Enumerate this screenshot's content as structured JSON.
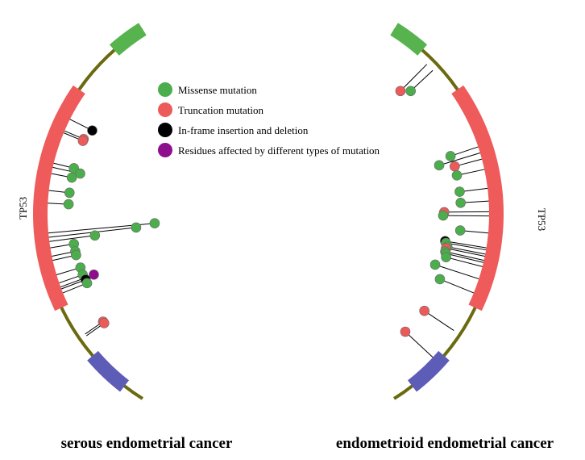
{
  "colors": {
    "backbone": "#6b6a10",
    "tp53_domain": "#ef5a5a",
    "domain_top": "#57b34d",
    "domain_bottom": "#5d5db8",
    "missense": "#4cad4c",
    "truncation": "#ec5a5a",
    "inframe": "#000000",
    "multi": "#8e0f8e"
  },
  "legend": [
    {
      "key": "missense",
      "label": "Missense mutation"
    },
    {
      "key": "truncation",
      "label": "Truncation mutation"
    },
    {
      "key": "inframe",
      "label": "In-frame insertion and deletion"
    },
    {
      "key": "multi",
      "label": "Residues affected by different types of mutation"
    }
  ],
  "chart_data": [
    {
      "type": "lollipop",
      "title": "serous endometrial cancer",
      "gene": "TP53",
      "mutations": [
        {
          "type": "inframe",
          "pos": 0.27,
          "len": 1.0
        },
        {
          "type": "truncation",
          "pos": 0.3,
          "len": 0.6
        },
        {
          "type": "truncation",
          "pos": 0.305,
          "len": 0.6
        },
        {
          "type": "missense",
          "pos": 0.38,
          "len": 0.6
        },
        {
          "type": "missense",
          "pos": 0.39,
          "len": 1.3
        },
        {
          "type": "missense",
          "pos": 0.405,
          "len": 0.6
        },
        {
          "type": "missense",
          "pos": 0.445,
          "len": 0.6
        },
        {
          "type": "missense",
          "pos": 0.475,
          "len": 0.6
        },
        {
          "type": "missense",
          "pos": 0.545,
          "len": 8.8
        },
        {
          "type": "missense",
          "pos": 0.555,
          "len": 7.0
        },
        {
          "type": "missense",
          "pos": 0.565,
          "len": 3.0
        },
        {
          "type": "missense",
          "pos": 0.58,
          "len": 0.9
        },
        {
          "type": "missense",
          "pos": 0.6,
          "len": 0.9
        },
        {
          "type": "missense",
          "pos": 0.61,
          "len": 0.9
        },
        {
          "type": "missense",
          "pos": 0.645,
          "len": 1.0
        },
        {
          "type": "missense",
          "pos": 0.665,
          "len": 1.0
        },
        {
          "type": "multi",
          "pos": 0.675,
          "len": 2.0
        },
        {
          "type": "inframe",
          "pos": 0.68,
          "len": 1.1
        },
        {
          "type": "missense",
          "pos": 0.69,
          "len": 1.1
        },
        {
          "type": "truncation",
          "pos": 0.8,
          "len": 0.7
        },
        {
          "type": "truncation",
          "pos": 0.805,
          "len": 0.7
        }
      ]
    },
    {
      "type": "lollipop",
      "title": "endometrioid endometrial cancer",
      "gene": "TP53",
      "mutations": [
        {
          "type": "truncation",
          "pos": 0.11,
          "len": 2.2
        },
        {
          "type": "missense",
          "pos": 0.13,
          "len": 1.5
        },
        {
          "type": "missense",
          "pos": 0.34,
          "len": 1.4
        },
        {
          "type": "missense",
          "pos": 0.355,
          "len": 2.7
        },
        {
          "type": "truncation",
          "pos": 0.37,
          "len": 1.3
        },
        {
          "type": "missense",
          "pos": 0.395,
          "len": 1.3
        },
        {
          "type": "missense",
          "pos": 0.44,
          "len": 1.3
        },
        {
          "type": "missense",
          "pos": 0.47,
          "len": 1.3
        },
        {
          "type": "truncation",
          "pos": 0.495,
          "len": 2.9
        },
        {
          "type": "missense",
          "pos": 0.505,
          "len": 3.0
        },
        {
          "type": "missense",
          "pos": 0.545,
          "len": 1.3
        },
        {
          "type": "inframe",
          "pos": 0.58,
          "len": 2.6
        },
        {
          "type": "missense",
          "pos": 0.585,
          "len": 2.5
        },
        {
          "type": "missense",
          "pos": 0.595,
          "len": 2.3
        },
        {
          "type": "truncation",
          "pos": 0.6,
          "len": 2.4
        },
        {
          "type": "missense",
          "pos": 0.61,
          "len": 2.4
        },
        {
          "type": "missense",
          "pos": 0.615,
          "len": 2.3
        },
        {
          "type": "missense",
          "pos": 0.625,
          "len": 2.2
        },
        {
          "type": "missense",
          "pos": 0.655,
          "len": 3.0
        },
        {
          "type": "missense",
          "pos": 0.69,
          "len": 2.1
        },
        {
          "type": "truncation",
          "pos": 0.79,
          "len": 2.0
        },
        {
          "type": "truncation",
          "pos": 0.87,
          "len": 2.2
        }
      ]
    }
  ]
}
